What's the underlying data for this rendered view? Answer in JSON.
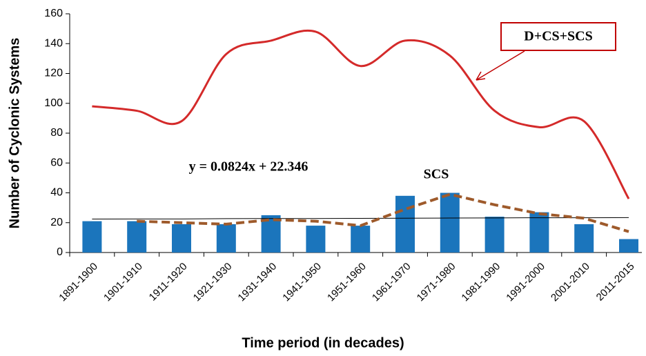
{
  "chart_data": {
    "type": "bar-line",
    "x_label": "Time period (in decades)",
    "y_label": "Number of Cyclonic Systems",
    "categories": [
      "1891-1900",
      "1901-1910",
      "1911-1920",
      "1921-1930",
      "1931-1940",
      "1941-1950",
      "1951-1960",
      "1961-1970",
      "1971-1980",
      "1981-1990",
      "1991-2000",
      "2001-2010",
      "2011-2015"
    ],
    "series": [
      {
        "type": "bar",
        "color": "#1b75bc",
        "values": [
          21,
          21,
          19,
          19,
          25,
          18,
          18,
          38,
          40,
          24,
          27,
          19,
          9
        ]
      },
      {
        "type": "line",
        "color": "#d42a2a",
        "smooth": true,
        "values": [
          98,
          95,
          88,
          133,
          142,
          148,
          125,
          142,
          132,
          95,
          84,
          88,
          36
        ]
      },
      {
        "type": "line",
        "color": "#9e5a2b",
        "dashed": true,
        "values": [
          null,
          21,
          20,
          19,
          22,
          21,
          18,
          29,
          39,
          32,
          26,
          23,
          14
        ]
      }
    ],
    "trendline": {
      "color": "#000000",
      "values": [
        22.4,
        22.5,
        22.5,
        22.7,
        22.8,
        22.8,
        22.9,
        23.0,
        23.1,
        23.2,
        23.3,
        23.3,
        23.4
      ]
    },
    "annotations": [
      {
        "text": "D+CS+SCS",
        "color": "#c00000"
      },
      {
        "text": "SCS",
        "color": "#1b75bc"
      },
      {
        "text": "y = 0.0824x + 22.346",
        "color": "#000000"
      }
    ],
    "ylim": [
      0,
      160
    ],
    "yticks": [
      0,
      20,
      40,
      60,
      80,
      100,
      120,
      140,
      160
    ]
  }
}
